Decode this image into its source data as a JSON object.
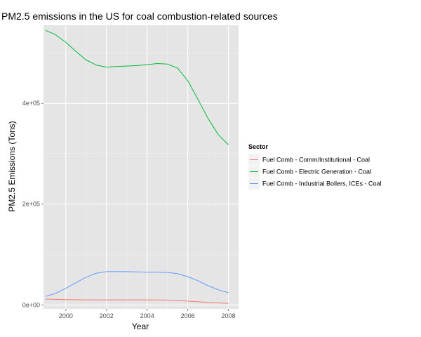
{
  "chart_data": {
    "type": "line",
    "title": "PM2.5 emissions in the US for coal combustion-related sources",
    "xlabel": "Year",
    "ylabel": "PM2.5 Emissions (Tons)",
    "xlim": [
      1998.9,
      2008.5
    ],
    "ylim": [
      -8000,
      555000
    ],
    "x_ticks": [
      2000,
      2002,
      2004,
      2006,
      2008
    ],
    "x_tick_labels": [
      "2000",
      "2002",
      "2004",
      "2006",
      "2008"
    ],
    "y_ticks": [
      0,
      200000,
      400000
    ],
    "y_tick_labels": [
      "0e+00",
      "2e+05",
      "4e+05"
    ],
    "grid": true,
    "legend": {
      "title": "Sector",
      "placement": "right"
    },
    "series": [
      {
        "name": "Fuel Comb - Comm/Institutional - Coal",
        "color": "#F8766D",
        "x": [
          1999,
          2000,
          2001,
          2002,
          2003,
          2004,
          2005,
          2006,
          2007,
          2008
        ],
        "values": [
          11500,
          10500,
          10000,
          10000,
          10000,
          10000,
          9500,
          7500,
          5000,
          3000
        ]
      },
      {
        "name": "Fuel Comb - Electric Generation - Coal",
        "color": "#00BA38",
        "x": [
          1999,
          1999.5,
          2000,
          2000.5,
          2001,
          2001.5,
          2002,
          2002.5,
          2003,
          2003.5,
          2004,
          2004.5,
          2005,
          2005.5,
          2006,
          2006.5,
          2007,
          2007.5,
          2008
        ],
        "values": [
          545000,
          536000,
          521000,
          503000,
          486000,
          476000,
          472000,
          473000,
          474000,
          475000,
          477000,
          479000,
          478000,
          470000,
          445000,
          408000,
          370000,
          338000,
          318000
        ]
      },
      {
        "name": "Fuel Comb - Industrial Boilers, ICEs - Coal",
        "color": "#619CFF",
        "x": [
          1999,
          1999.5,
          2000,
          2000.5,
          2001,
          2001.5,
          2002,
          2002.5,
          2003,
          2003.5,
          2004,
          2004.5,
          2005,
          2005.5,
          2006,
          2006.5,
          2007,
          2007.5,
          2008
        ],
        "values": [
          17000,
          23000,
          33000,
          44000,
          55000,
          63000,
          66000,
          66000,
          66000,
          65500,
          65000,
          65000,
          64500,
          62000,
          56000,
          48000,
          38000,
          30000,
          24000
        ]
      }
    ]
  }
}
